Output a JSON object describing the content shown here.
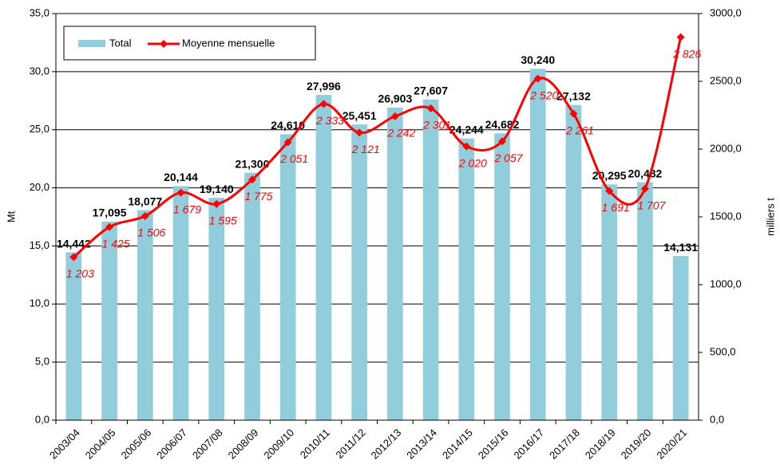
{
  "chart_data": {
    "type": "bar_line",
    "y_label": "Mt",
    "y2_label": "milliers t",
    "categories": [
      "2003/04",
      "2004/05",
      "2005/06",
      "2006/07",
      "2007/08",
      "2008/09",
      "2009/10",
      "2010/11",
      "2011/12",
      "2012/13",
      "2013/14",
      "2014/15",
      "2015/16",
      "2016/17",
      "2017/18",
      "2018/19",
      "2019/20",
      "2020/21"
    ],
    "series": [
      {
        "name": "Total",
        "color": "#92cddc",
        "values": [
          14.442,
          17.095,
          18.077,
          20.144,
          19.14,
          21.3,
          24.61,
          27.996,
          25.451,
          26.903,
          27.607,
          24.244,
          24.682,
          30.24,
          27.132,
          20.295,
          20.482,
          14.131
        ],
        "value_labels": [
          "14,442",
          "17,095",
          "18,077",
          "20,144",
          "19,140",
          "21,300",
          "24,610",
          "27,996",
          "25,451",
          "26,903",
          "27,607",
          "24,244",
          "24,682",
          "30,240",
          "27,132",
          "20,295",
          "20,482",
          "14,131"
        ]
      },
      {
        "name": "Moyenne mensuelle",
        "color": "#ff0000",
        "axis": "y2",
        "values": [
          1203,
          1425,
          1506,
          1679,
          1595,
          1775,
          2051,
          2333,
          2121,
          2242,
          2301,
          2020,
          2057,
          2520,
          2261,
          1691,
          1707,
          2826
        ],
        "value_labels": [
          "1 203",
          "1 425",
          "1 506",
          "1 679",
          "1 595",
          "1 775",
          "2 051",
          "2 333",
          "2 121",
          "2 242",
          "2 301",
          "2 020",
          "2 057",
          "2 520",
          "2 261",
          "1 691",
          "1 707",
          "2 826"
        ]
      }
    ],
    "ylim": [
      0,
      35
    ],
    "yticks": [
      {
        "value": 0,
        "label": "0,0"
      },
      {
        "value": 5,
        "label": "5,0"
      },
      {
        "value": 10,
        "label": "10,0"
      },
      {
        "value": 15,
        "label": "15,0"
      },
      {
        "value": 20,
        "label": "20,0"
      },
      {
        "value": 25,
        "label": "25,0"
      },
      {
        "value": 30,
        "label": "30,0"
      },
      {
        "value": 35,
        "label": "35,0"
      }
    ],
    "y2lim": [
      0,
      3000
    ],
    "y2ticks": [
      {
        "value": 0,
        "label": "0,0"
      },
      {
        "value": 500,
        "label": "500,0"
      },
      {
        "value": 1000,
        "label": "1000,0"
      },
      {
        "value": 1500,
        "label": "1500,0"
      },
      {
        "value": 2000,
        "label": "2000,0"
      },
      {
        "value": 2500,
        "label": "2500,0"
      },
      {
        "value": 3000,
        "label": "3000,0"
      }
    ],
    "grid": true,
    "legend": "top-left"
  }
}
